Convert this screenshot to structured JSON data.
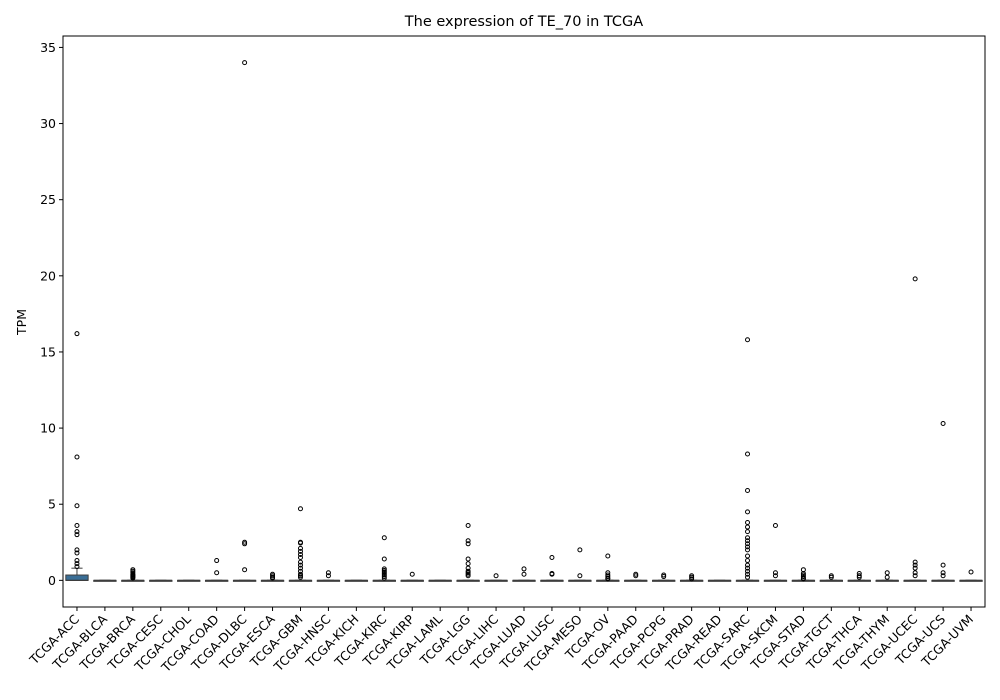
{
  "chart_data": {
    "type": "box",
    "title": "The expression of TE_70 in TCGA",
    "xlabel": "",
    "ylabel": "TPM",
    "ylim": [
      -1.75,
      35.75
    ],
    "yticks": [
      0,
      5,
      10,
      15,
      20,
      25,
      30,
      35
    ],
    "grid": false,
    "box_color": "#3a6e96",
    "categories": [
      "TCGA-ACC",
      "TCGA-BLCA",
      "TCGA-BRCA",
      "TCGA-CESC",
      "TCGA-CHOL",
      "TCGA-COAD",
      "TCGA-DLBC",
      "TCGA-ESCA",
      "TCGA-GBM",
      "TCGA-HNSC",
      "TCGA-KICH",
      "TCGA-KIRC",
      "TCGA-KIRP",
      "TCGA-LAML",
      "TCGA-LGG",
      "TCGA-LIHC",
      "TCGA-LUAD",
      "TCGA-LUSC",
      "TCGA-MESO",
      "TCGA-OV",
      "TCGA-PAAD",
      "TCGA-PCPG",
      "TCGA-PRAD",
      "TCGA-READ",
      "TCGA-SARC",
      "TCGA-SKCM",
      "TCGA-STAD",
      "TCGA-TGCT",
      "TCGA-THCA",
      "TCGA-THYM",
      "TCGA-UCEC",
      "TCGA-UCS",
      "TCGA-UVM"
    ],
    "boxes": [
      {
        "q1": 0,
        "median": 0,
        "q3": 0.35,
        "whisker_low": 0,
        "whisker_high": 0.8,
        "outliers": [
          16.2,
          8.1,
          4.9,
          3.6,
          3.2,
          3.0,
          2.0,
          1.8,
          1.3,
          1.1,
          0.9
        ]
      },
      {
        "q1": 0,
        "median": 0,
        "q3": 0,
        "whisker_low": 0,
        "whisker_high": 0,
        "outliers": []
      },
      {
        "q1": 0,
        "median": 0,
        "q3": 0,
        "whisker_low": 0,
        "whisker_high": 0,
        "outliers": [
          0.7,
          0.6,
          0.5,
          0.4,
          0.35,
          0.3,
          0.25,
          0.2,
          0.15
        ]
      },
      {
        "q1": 0,
        "median": 0,
        "q3": 0,
        "whisker_low": 0,
        "whisker_high": 0,
        "outliers": []
      },
      {
        "q1": 0,
        "median": 0,
        "q3": 0,
        "whisker_low": 0,
        "whisker_high": 0,
        "outliers": []
      },
      {
        "q1": 0,
        "median": 0,
        "q3": 0,
        "whisker_low": 0,
        "whisker_high": 0,
        "outliers": [
          1.3,
          0.5
        ]
      },
      {
        "q1": 0,
        "median": 0,
        "q3": 0,
        "whisker_low": 0,
        "whisker_high": 0,
        "outliers": [
          34.0,
          2.5,
          2.4,
          0.7
        ]
      },
      {
        "q1": 0,
        "median": 0,
        "q3": 0,
        "whisker_low": 0,
        "whisker_high": 0,
        "outliers": [
          0.4,
          0.3,
          0.2,
          0.15
        ]
      },
      {
        "q1": 0,
        "median": 0,
        "q3": 0,
        "whisker_low": 0,
        "whisker_high": 0,
        "outliers": [
          4.7,
          2.5,
          2.45,
          2.1,
          1.9,
          1.7,
          1.5,
          1.2,
          1.0,
          0.8,
          0.6,
          0.4,
          0.3,
          0.2
        ]
      },
      {
        "q1": 0,
        "median": 0,
        "q3": 0,
        "whisker_low": 0,
        "whisker_high": 0,
        "outliers": [
          0.5,
          0.3
        ]
      },
      {
        "q1": 0,
        "median": 0,
        "q3": 0,
        "whisker_low": 0,
        "whisker_high": 0,
        "outliers": []
      },
      {
        "q1": 0,
        "median": 0,
        "q3": 0,
        "whisker_low": 0,
        "whisker_high": 0,
        "outliers": [
          2.8,
          1.4,
          0.75,
          0.65,
          0.55,
          0.45,
          0.35,
          0.25,
          0.15
        ]
      },
      {
        "q1": 0,
        "median": 0,
        "q3": 0,
        "whisker_low": 0,
        "whisker_high": 0,
        "outliers": [
          0.4
        ]
      },
      {
        "q1": 0,
        "median": 0,
        "q3": 0,
        "whisker_low": 0,
        "whisker_high": 0,
        "outliers": []
      },
      {
        "q1": 0,
        "median": 0,
        "q3": 0,
        "whisker_low": 0,
        "whisker_high": 0,
        "outliers": [
          3.6,
          2.6,
          2.4,
          1.4,
          1.1,
          0.8,
          0.6,
          0.5,
          0.4,
          0.3
        ]
      },
      {
        "q1": 0,
        "median": 0,
        "q3": 0,
        "whisker_low": 0,
        "whisker_high": 0,
        "outliers": [
          0.3
        ]
      },
      {
        "q1": 0,
        "median": 0,
        "q3": 0,
        "whisker_low": 0,
        "whisker_high": 0,
        "outliers": [
          0.75,
          0.4
        ]
      },
      {
        "q1": 0,
        "median": 0,
        "q3": 0,
        "whisker_low": 0,
        "whisker_high": 0,
        "outliers": [
          1.5,
          0.45,
          0.4
        ]
      },
      {
        "q1": 0,
        "median": 0,
        "q3": 0,
        "whisker_low": 0,
        "whisker_high": 0,
        "outliers": [
          2.0,
          0.3
        ]
      },
      {
        "q1": 0,
        "median": 0,
        "q3": 0,
        "whisker_low": 0,
        "whisker_high": 0,
        "outliers": [
          1.6,
          0.5,
          0.35,
          0.25,
          0.15,
          0.1
        ]
      },
      {
        "q1": 0,
        "median": 0,
        "q3": 0,
        "whisker_low": 0,
        "whisker_high": 0,
        "outliers": [
          0.4,
          0.3
        ]
      },
      {
        "q1": 0,
        "median": 0,
        "q3": 0,
        "whisker_low": 0,
        "whisker_high": 0,
        "outliers": [
          0.35,
          0.25
        ]
      },
      {
        "q1": 0,
        "median": 0,
        "q3": 0,
        "whisker_low": 0,
        "whisker_high": 0,
        "outliers": [
          0.3,
          0.2,
          0.1
        ]
      },
      {
        "q1": 0,
        "median": 0,
        "q3": 0,
        "whisker_low": 0,
        "whisker_high": 0,
        "outliers": []
      },
      {
        "q1": 0,
        "median": 0,
        "q3": 0,
        "whisker_low": 0,
        "whisker_high": 0,
        "outliers": [
          15.8,
          8.3,
          5.9,
          4.5,
          3.8,
          3.5,
          3.2,
          2.8,
          2.6,
          2.4,
          2.2,
          2.0,
          1.6,
          1.3,
          1.0,
          0.8,
          0.6,
          0.4,
          0.2
        ]
      },
      {
        "q1": 0,
        "median": 0,
        "q3": 0,
        "whisker_low": 0,
        "whisker_high": 0,
        "outliers": [
          3.6,
          0.5,
          0.3
        ]
      },
      {
        "q1": 0,
        "median": 0,
        "q3": 0,
        "whisker_low": 0,
        "whisker_high": 0,
        "outliers": [
          0.7,
          0.45,
          0.35,
          0.25,
          0.15,
          0.1
        ]
      },
      {
        "q1": 0,
        "median": 0,
        "q3": 0,
        "whisker_low": 0,
        "whisker_high": 0,
        "outliers": [
          0.3,
          0.2
        ]
      },
      {
        "q1": 0,
        "median": 0,
        "q3": 0,
        "whisker_low": 0,
        "whisker_high": 0,
        "outliers": [
          0.45,
          0.3,
          0.2
        ]
      },
      {
        "q1": 0,
        "median": 0,
        "q3": 0,
        "whisker_low": 0,
        "whisker_high": 0,
        "outliers": [
          0.5,
          0.2
        ]
      },
      {
        "q1": 0,
        "median": 0,
        "q3": 0,
        "whisker_low": 0,
        "whisker_high": 0,
        "outliers": [
          19.8,
          1.2,
          1.0,
          0.8,
          0.5,
          0.3
        ]
      },
      {
        "q1": 0,
        "median": 0,
        "q3": 0,
        "whisker_low": 0,
        "whisker_high": 0,
        "outliers": [
          10.3,
          1.0,
          0.5,
          0.3
        ]
      },
      {
        "q1": 0,
        "median": 0,
        "q3": 0,
        "whisker_low": 0,
        "whisker_high": 0,
        "outliers": [
          0.55
        ]
      }
    ]
  }
}
